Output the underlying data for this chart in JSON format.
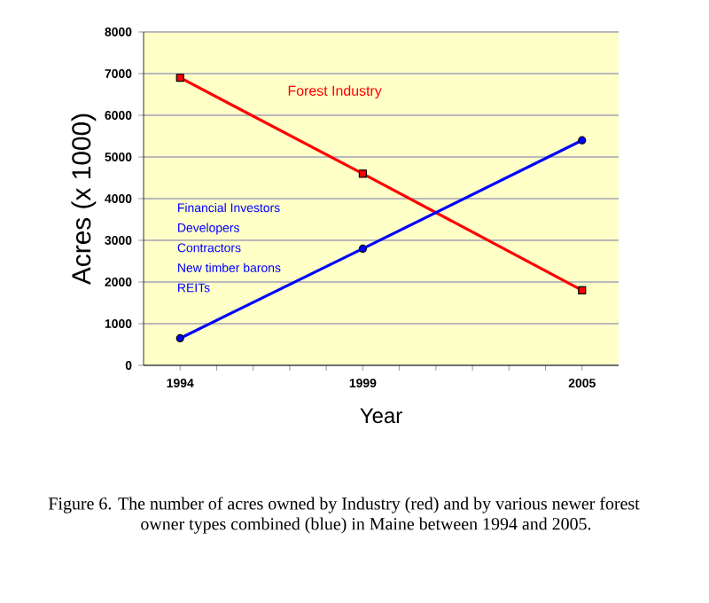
{
  "chart_data": {
    "type": "line",
    "xlabel": "Year",
    "ylabel": "Acres (x 1000)",
    "x": [
      1994,
      1999,
      2005
    ],
    "series": [
      {
        "name": "Forest Industry",
        "color": "#ff0000",
        "values": [
          6900,
          4600,
          1800
        ],
        "marker": "square"
      },
      {
        "color": "#0000ff",
        "values": [
          650,
          2800,
          5400
        ],
        "marker": "circle"
      }
    ],
    "xlim": [
      1993,
      2006
    ],
    "xticks": [
      1994,
      {
        "value": 1995,
        "label": null
      },
      {
        "value": 1996,
        "label": null
      },
      {
        "value": 1997,
        "label": null
      },
      {
        "value": 1998,
        "label": null
      },
      1999,
      {
        "value": 2000,
        "label": null
      },
      {
        "value": 2001,
        "label": null
      },
      {
        "value": 2002,
        "label": null
      },
      {
        "value": 2003,
        "label": null
      },
      {
        "value": 2004,
        "label": null
      },
      2005
    ],
    "ylim": [
      0,
      8000
    ],
    "yticks": [
      0,
      1000,
      2000,
      3000,
      4000,
      5000,
      6000,
      7000,
      8000
    ],
    "grid": "y",
    "annotations": [
      "Financial Investors",
      "Developers",
      "Contractors",
      "New timber barons",
      "REITs",
      "Figure 6. The number of acres owned by Industry (red) and by various newer forest owner types combined (blue) in Maine between 1994 and 2005."
    ]
  }
}
